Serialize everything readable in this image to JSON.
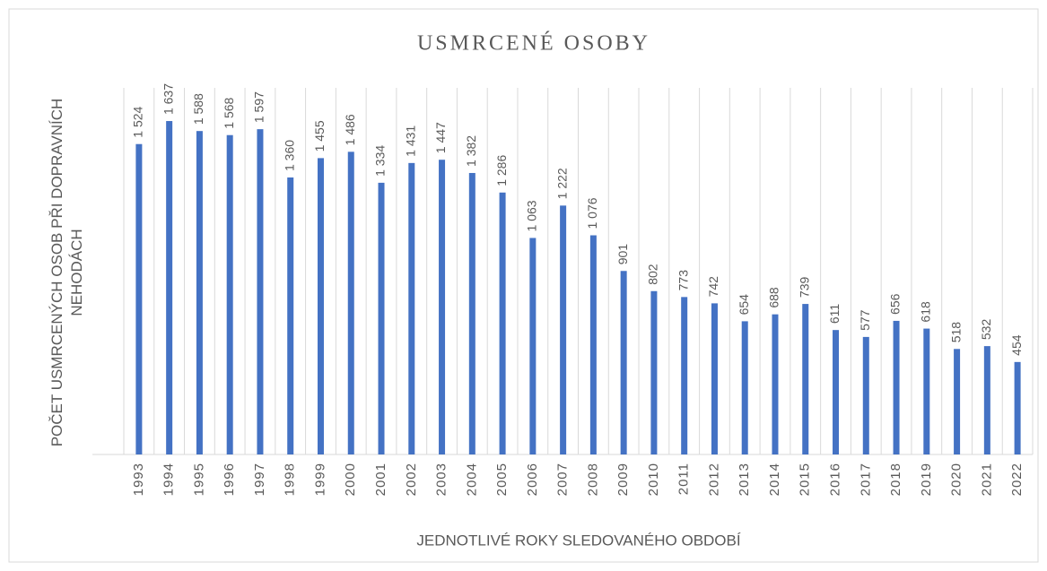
{
  "chart_data": {
    "type": "bar",
    "title": "USMRCENÉ OSOBY",
    "xlabel": "JEDNOTLIVÉ ROKY SLEDOVANÉHO OBDOBÍ",
    "ylabel": "POČET USMRCENÝCH OSOB PŘI DOPRAVNÍCH NEHODÁCH",
    "categories": [
      "1993",
      "1994",
      "1995",
      "1996",
      "1997",
      "1998",
      "1999",
      "2000",
      "2001",
      "2002",
      "2003",
      "2004",
      "2005",
      "2006",
      "2007",
      "2008",
      "2009",
      "2010",
      "2011",
      "2012",
      "2013",
      "2014",
      "2015",
      "2016",
      "2017",
      "2018",
      "2019",
      "2020",
      "2021",
      "2022"
    ],
    "values": [
      1524,
      1637,
      1588,
      1568,
      1597,
      1360,
      1455,
      1486,
      1334,
      1431,
      1447,
      1382,
      1286,
      1063,
      1222,
      1076,
      901,
      802,
      773,
      742,
      654,
      688,
      739,
      611,
      577,
      656,
      618,
      518,
      532,
      454
    ],
    "value_labels": [
      "1 524",
      "1 637",
      "1 588",
      "1 568",
      "1 597",
      "1 360",
      "1 455",
      "1 486",
      "1 334",
      "1 431",
      "1 447",
      "1 382",
      "1 286",
      "1 063",
      "1 222",
      "1 076",
      "901",
      "802",
      "773",
      "742",
      "654",
      "688",
      "739",
      "611",
      "577",
      "656",
      "618",
      "518",
      "532",
      "454"
    ],
    "color": "#4472c4",
    "ylim": [
      0,
      1800
    ],
    "grid": true
  }
}
